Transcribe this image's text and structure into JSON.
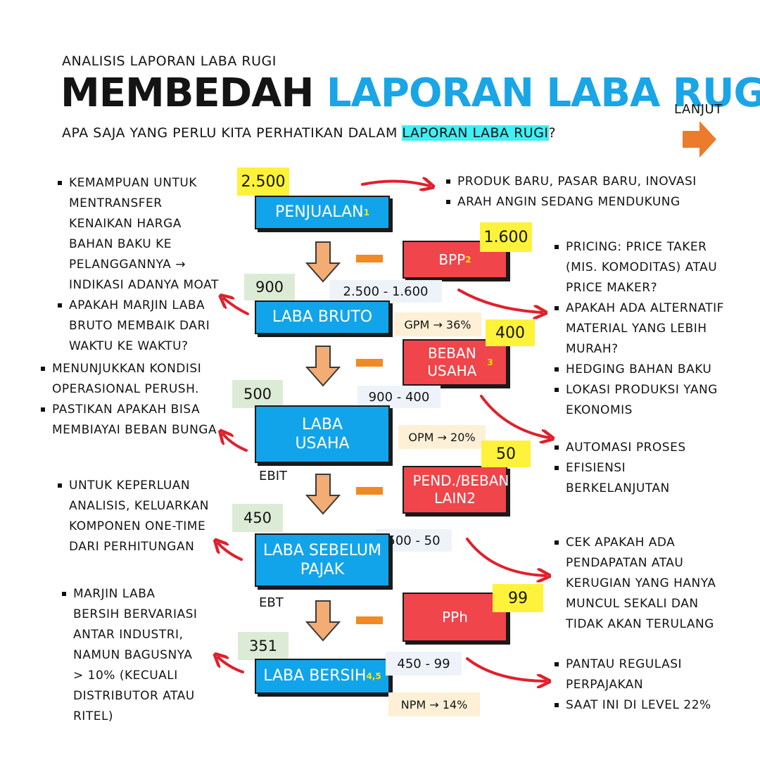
{
  "header": {
    "kicker": "ANALISIS LAPORAN LABA RUGI",
    "title_part1": "MEMBEDAH ",
    "title_part2": "LAPORAN LABA RUGI",
    "subtitle_before": "APA SAJA YANG PERLU KITA PERHATIKAN DALAM ",
    "subtitle_highlight": "LAPORAN LABA RUGI",
    "subtitle_after": "?",
    "next_label": "LANJUT"
  },
  "colors": {
    "blue": "#12a4ea",
    "red": "#f0454a",
    "yellow": "#fff23a",
    "green_tag": "#dcebd5",
    "orange": "#f08a22",
    "arrow_red": "#e0202c",
    "title_blue": "#1aa5e6",
    "cyan_highlight": "#3ff0f4"
  },
  "flow": {
    "penjualan": {
      "label": "PENJUALAN",
      "note": "1",
      "value": "2.500"
    },
    "bpp": {
      "label": "BPP",
      "note": "2",
      "value": "1.600"
    },
    "laba_bruto": {
      "label": "LABA BRUTO",
      "value": "900",
      "calc": "2.500 - 1.600",
      "ratio": "GPM → 36%"
    },
    "beban_usaha": {
      "label": "BEBAN USAHA",
      "note": "3",
      "value": "400"
    },
    "laba_usaha": {
      "label": "LABA USAHA",
      "value": "500",
      "calc": "900 - 400",
      "ratio": "OPM → 20%",
      "tag": "EBIT"
    },
    "pend_beban": {
      "label": "PEND./BEBAN LAIN2",
      "value": "50"
    },
    "laba_sebelum_pajak": {
      "label": "LABA SEBELUM PAJAK",
      "value": "450",
      "calc": "500 - 50",
      "tag": "EBT"
    },
    "pph": {
      "label": "PPh",
      "value": "99"
    },
    "laba_bersih": {
      "label": "LABA BERSIH",
      "note": "4,5",
      "value": "351",
      "calc": "450 - 99",
      "ratio": "NPM → 14%"
    }
  },
  "left_notes": {
    "g1": [
      "KEMAMPUAN UNTUK MENTRANSFER KENAIKAN HARGA BAHAN BAKU KE PELANGGANNYA → INDIKASI ADANYA MOAT",
      "APAKAH MARJIN LABA BRUTO MEMBAIK DARI WAKTU KE WAKTU?"
    ],
    "g2": [
      "MENUNJUKKAN KONDISI OPERASIONAL PERUSH.",
      "PASTIKAN APAKAH BISA MEMBIAYAI BEBAN BUNGA"
    ],
    "g3": [
      "UNTUK KEPERLUAN ANALISIS, KELUARKAN KOMPONEN ONE-TIME DARI PERHITUNGAN"
    ],
    "g4": [
      "MARJIN LABA BERSIH BERVARIASI ANTAR INDUSTRI, NAMUN BAGUSNYA > 10% (KECUALI DISTRIBUTOR ATAU RITEL)"
    ]
  },
  "right_notes": {
    "g1": [
      "PRODUK BARU, PASAR BARU, INOVASI",
      "ARAH ANGIN SEDANG MENDUKUNG"
    ],
    "g2": [
      "PRICING: PRICE TAKER (MIS. KOMODITAS) ATAU PRICE MAKER?",
      "APAKAH ADA ALTERNATIF MATERIAL YANG LEBIH MURAH?",
      "HEDGING BAHAN BAKU",
      "LOKASI PRODUKSI YANG EKONOMIS"
    ],
    "g3": [
      "AUTOMASI PROSES",
      "EFISIENSI BERKELANJUTAN"
    ],
    "g4": [
      "CEK APAKAH ADA PENDAPATAN ATAU KERUGIAN YANG HANYA MUNCUL SEKALI DAN TIDAK AKAN TERULANG"
    ],
    "g5": [
      "PANTAU REGULASI PERPAJAKAN",
      "SAAT INI DI LEVEL 22%"
    ]
  }
}
